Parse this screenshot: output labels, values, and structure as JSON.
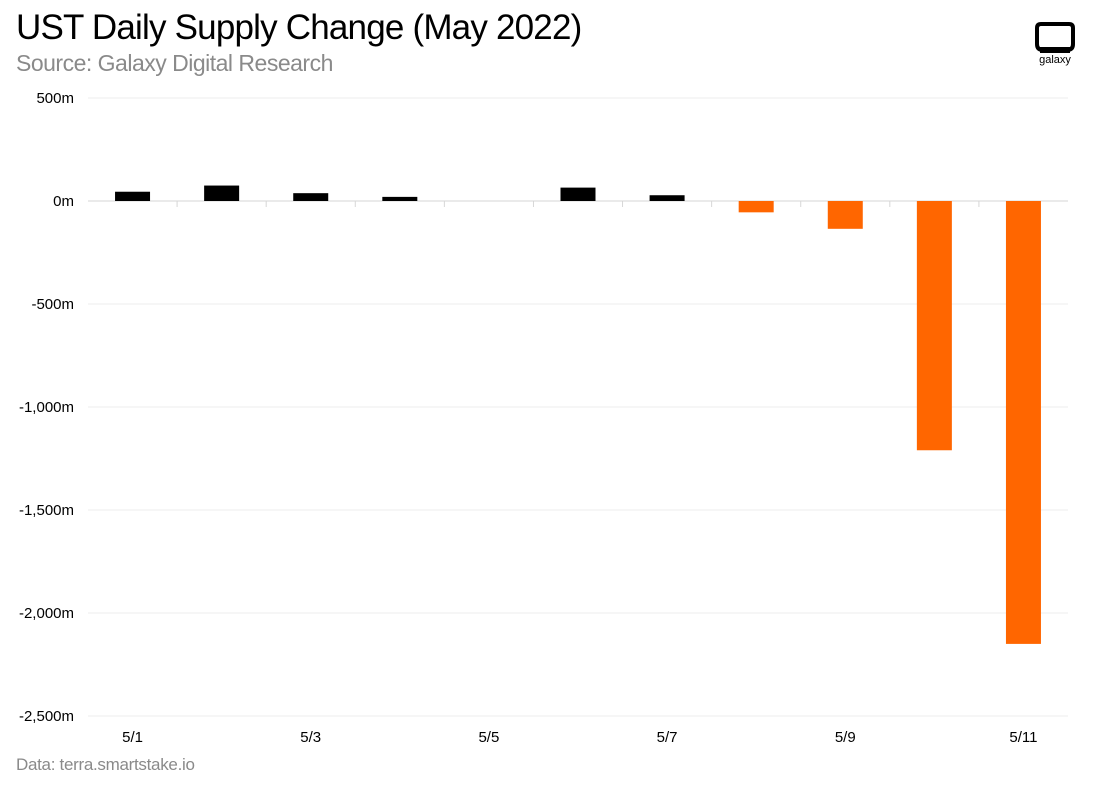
{
  "header": {
    "title": "UST Daily Supply Change (May 2022)",
    "subtitle": "Source: Galaxy Digital Research"
  },
  "footer": {
    "data_source": "Data: terra.smartstake.io"
  },
  "logo": {
    "icon": "galaxy-logo-icon",
    "text": "galaxy"
  },
  "chart_data": {
    "type": "bar",
    "title": "UST Daily Supply Change (May 2022)",
    "subtitle": "Source: Galaxy Digital Research",
    "xlabel": "",
    "ylabel": "",
    "categories": [
      "5/1",
      "5/2",
      "5/3",
      "5/4",
      "5/5",
      "5/6",
      "5/7",
      "5/8",
      "5/9",
      "5/10",
      "5/11"
    ],
    "x_tick_labels": [
      "5/1",
      "5/3",
      "5/5",
      "5/7",
      "5/9",
      "5/11"
    ],
    "y_tick_labels": [
      "500m",
      "0m",
      "-500m",
      "-1,000m",
      "-1,500m",
      "-2,000m",
      "-2,500m"
    ],
    "y_ticks": [
      500,
      0,
      -500,
      -1000,
      -1500,
      -2000,
      -2500
    ],
    "values": [
      45,
      75,
      38,
      20,
      0,
      65,
      28,
      -55,
      -135,
      -1210,
      -2150
    ],
    "unit": "millions UST",
    "ylim": [
      -2500,
      500
    ],
    "grid": true,
    "colors": {
      "positive": "#000000",
      "negative": "#ff6600",
      "grid": "#ececec",
      "zero_line": "#d6d6d6"
    }
  }
}
